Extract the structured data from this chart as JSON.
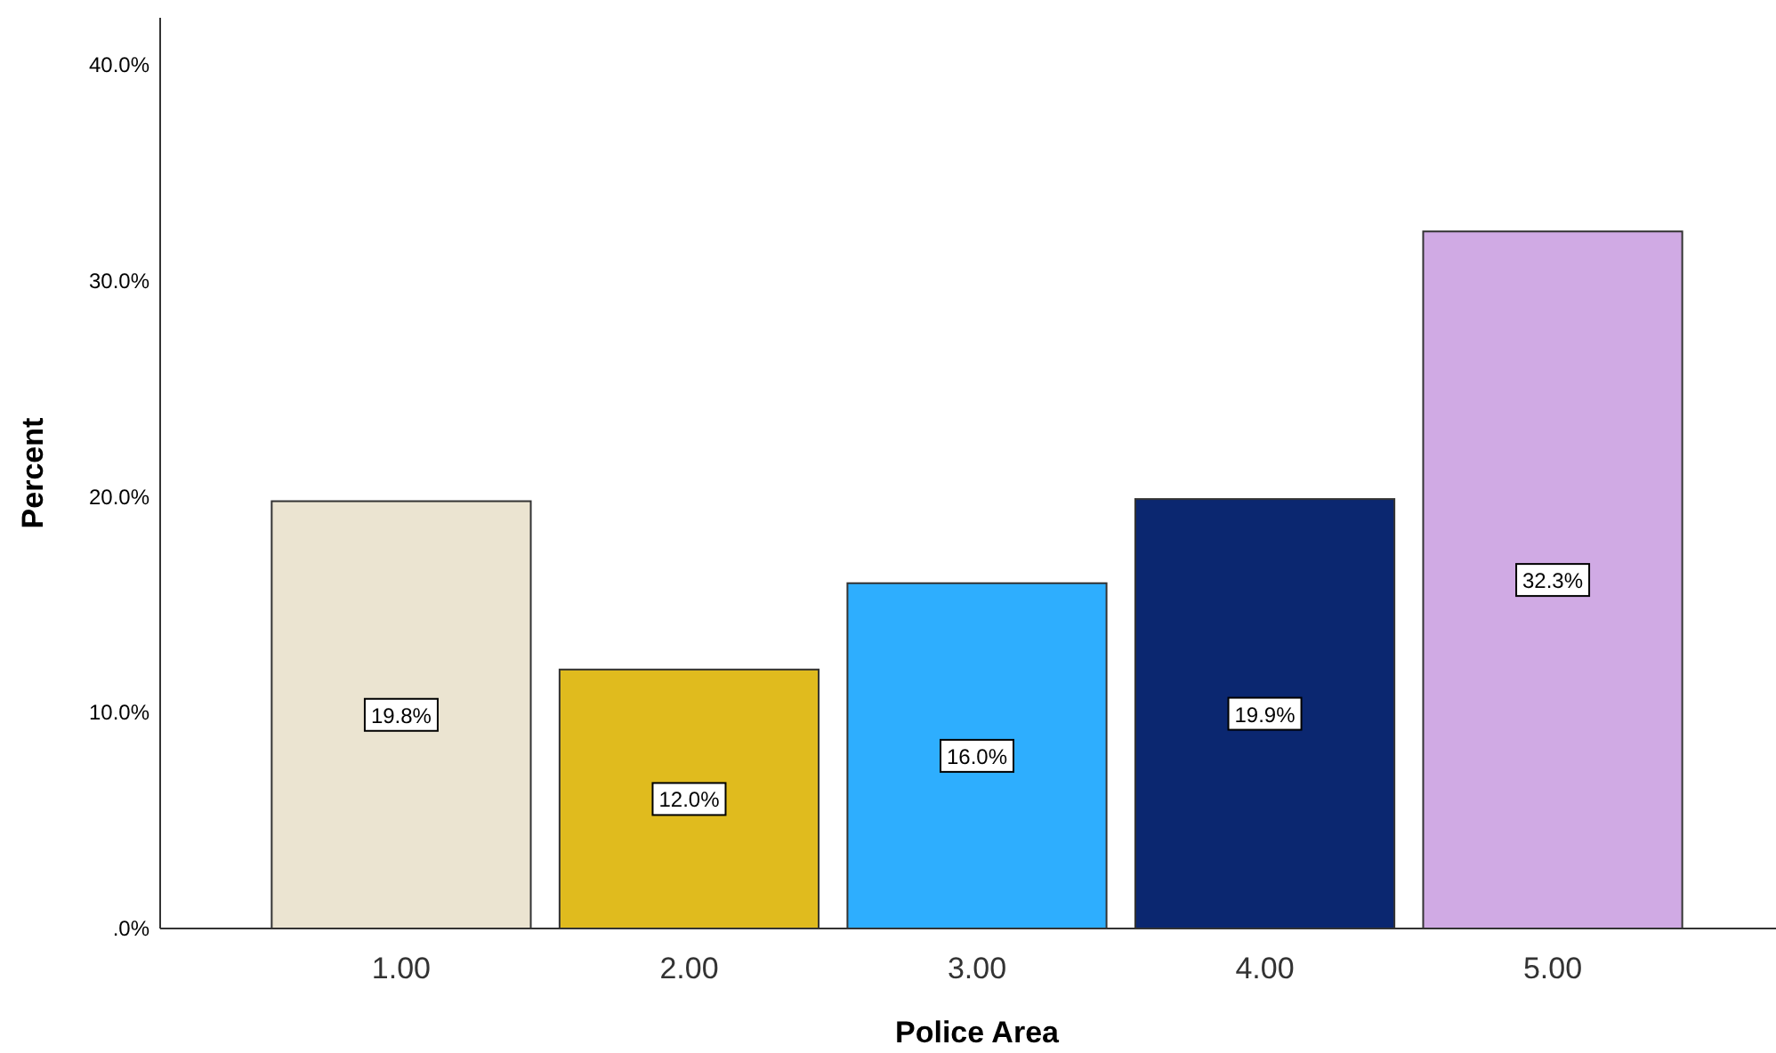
{
  "chart_data": {
    "type": "bar",
    "xlabel": "Police Area",
    "ylabel": "Percent",
    "categories": [
      "1.00",
      "2.00",
      "3.00",
      "4.00",
      "5.00"
    ],
    "values": [
      19.8,
      12.0,
      16.0,
      19.9,
      32.3
    ],
    "value_labels": [
      "19.8%",
      "12.0%",
      "16.0%",
      "19.9%",
      "32.3%"
    ],
    "colors": [
      "#ebe4d1",
      "#e0bb1e",
      "#2eaefe",
      "#0b2770",
      "#d0aae4"
    ],
    "ylim": [
      0,
      42.2
    ],
    "yticks": [
      {
        "value": 0,
        "label": ".0%"
      },
      {
        "value": 10,
        "label": "10.0%"
      },
      {
        "value": 20,
        "label": "20.0%"
      },
      {
        "value": 30,
        "label": "30.0%"
      },
      {
        "value": 40,
        "label": "40.0%"
      }
    ],
    "grid": false
  }
}
